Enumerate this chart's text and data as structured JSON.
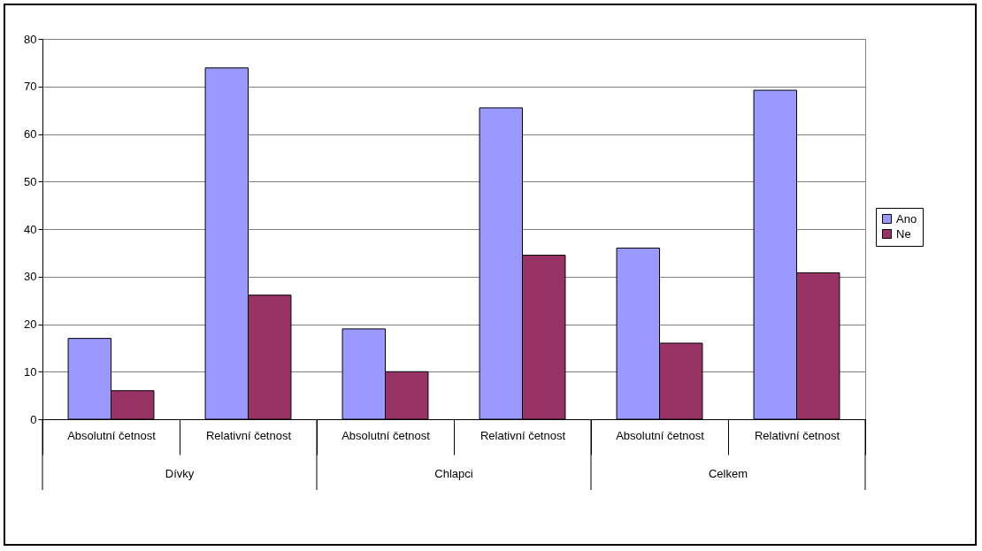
{
  "chart_data": {
    "type": "bar",
    "categories": [
      "Absolutní četnost",
      "Relativní četnost",
      "Absolutní četnost",
      "Relativní četnost",
      "Absolutní četnost",
      "Relativní četnost"
    ],
    "series": [
      {
        "name": "Ano",
        "color": "#9999ff",
        "values": [
          17,
          73.9,
          19,
          65.5,
          36,
          69.2
        ]
      },
      {
        "name": "Ne",
        "color": "#993366",
        "values": [
          6,
          26.1,
          10,
          34.5,
          16,
          30.8
        ]
      }
    ],
    "annotations": [
      "Dívky",
      "Chlapci",
      "Celkem"
    ],
    "ylim": [
      0,
      80
    ],
    "yticks": [
      0,
      10,
      20,
      30,
      40,
      50,
      60,
      70,
      80
    ],
    "grid": "y",
    "legend": "right"
  }
}
